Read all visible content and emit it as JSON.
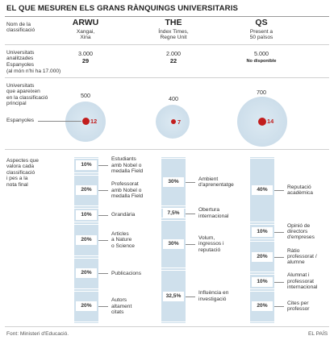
{
  "title": "EL QUE MESUREN ELS GRANS RÀNQUINGS UNIVERSITARIS",
  "row_labels": {
    "name": [
      "Nom de la",
      "classificació"
    ],
    "analyzed": [
      "Universitats",
      "analitzades"
    ],
    "spanish": "Espanyoles",
    "total": "(al món n'hi ha 17.000)",
    "top_univ": [
      "Universitats",
      "que apareixen",
      "en la classificació",
      "principal"
    ],
    "spanish_top": "Espanyoles",
    "aspects": [
      "Aspectes que",
      "valora cada",
      "classificació",
      "i pes a la",
      "nota final"
    ]
  },
  "rankings": [
    {
      "name": "ARWU",
      "sub": [
        "Xangai,",
        "Xina"
      ],
      "analyzed": "3.000",
      "spanish": "29",
      "top": "500",
      "top_spanish": "12"
    },
    {
      "name": "THE",
      "sub": [
        "Índex Times,",
        "Regne Unit"
      ],
      "analyzed": "2.000",
      "spanish": "22",
      "top": "400",
      "top_spanish": "7"
    },
    {
      "name": "QS",
      "sub": [
        "Present a",
        "50 països"
      ],
      "analyzed": "5.000",
      "spanish": "No disponible",
      "top": "700",
      "top_spanish": "14"
    }
  ],
  "aspects": {
    "arwu": [
      {
        "pct": "10%",
        "value": 10,
        "label": [
          "Estudiants",
          "amb Nobel o",
          "medalla Field"
        ]
      },
      {
        "pct": "20%",
        "value": 20,
        "label": [
          "Professorat",
          "amb Nobel o",
          "medalla Field"
        ]
      },
      {
        "pct": "10%",
        "value": 10,
        "label": [
          "Grandària"
        ]
      },
      {
        "pct": "20%",
        "value": 20,
        "label": [
          "Articles",
          "a Nature",
          "o Science"
        ]
      },
      {
        "pct": "20%",
        "value": 20,
        "label": [
          "Publicacions"
        ]
      },
      {
        "pct": "20%",
        "value": 20,
        "label": [
          "Autors",
          "altament",
          "citats"
        ]
      }
    ],
    "the": [
      {
        "pct": "30%",
        "value": 30,
        "label": [
          "Ambient",
          "d'aprenentatge"
        ]
      },
      {
        "pct": "7,5%",
        "value": 7.5,
        "label": [
          "Obertura",
          "internacional"
        ]
      },
      {
        "pct": "30%",
        "value": 30,
        "label": [
          "Volum,",
          "ingressos i",
          "reputació"
        ]
      },
      {
        "pct": "32,5%",
        "value": 32.5,
        "label": [
          "Influència en",
          "investigació"
        ]
      }
    ],
    "qs": [
      {
        "pct": "40%",
        "value": 40,
        "label": [
          "Reputació",
          "acadèmica"
        ]
      },
      {
        "pct": "10%",
        "value": 10,
        "label": [
          "Opinió de",
          "directors",
          "d'empreses"
        ]
      },
      {
        "pct": "20%",
        "value": 20,
        "label": [
          "Ràtio",
          "professorat /",
          "alumne"
        ]
      },
      {
        "pct": "10%",
        "value": 10,
        "label": [
          "Alumnat i",
          "professorat",
          "internacional"
        ]
      },
      {
        "pct": "20%",
        "value": 20,
        "label": [
          "Cites per",
          "professor"
        ]
      }
    ]
  },
  "footer": {
    "source": "Font: Ministeri d'Educació.",
    "brand": "EL PAÍS"
  },
  "colors": {
    "accent": "#c21d1d",
    "bar": "#cfe0ec",
    "circle": "#c6d9e7"
  }
}
